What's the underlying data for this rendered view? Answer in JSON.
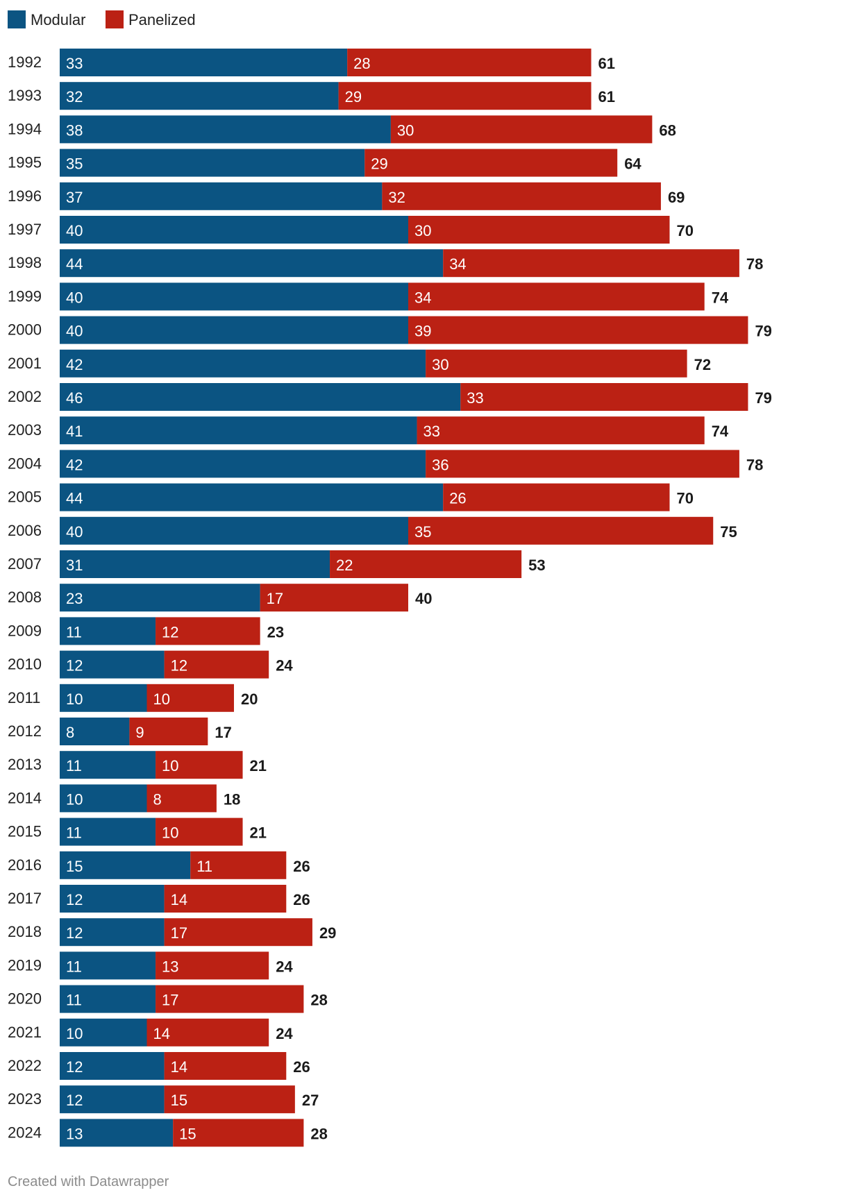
{
  "chart_data": {
    "type": "bar",
    "orientation": "horizontal",
    "stacked": true,
    "title": "",
    "xlabel": "",
    "ylabel": "",
    "xlim": [
      0,
      79
    ],
    "grid": false,
    "legend_position": "top-left",
    "categories": [
      "1992",
      "1993",
      "1994",
      "1995",
      "1996",
      "1997",
      "1998",
      "1999",
      "2000",
      "2001",
      "2002",
      "2003",
      "2004",
      "2005",
      "2006",
      "2007",
      "2008",
      "2009",
      "2010",
      "2011",
      "2012",
      "2013",
      "2014",
      "2015",
      "2016",
      "2017",
      "2018",
      "2019",
      "2020",
      "2021",
      "2022",
      "2023",
      "2024"
    ],
    "series": [
      {
        "name": "Modular",
        "color": "#0b5482",
        "values": [
          33,
          32,
          38,
          35,
          37,
          40,
          44,
          40,
          40,
          42,
          46,
          41,
          42,
          44,
          40,
          31,
          23,
          11,
          12,
          10,
          8,
          11,
          10,
          11,
          15,
          12,
          12,
          11,
          11,
          10,
          12,
          12,
          13
        ]
      },
      {
        "name": "Panelized",
        "color": "#bb2114",
        "values": [
          28,
          29,
          30,
          29,
          32,
          30,
          34,
          34,
          39,
          30,
          33,
          33,
          36,
          26,
          35,
          22,
          17,
          12,
          12,
          10,
          9,
          10,
          8,
          10,
          11,
          14,
          17,
          13,
          17,
          14,
          14,
          15,
          15
        ]
      }
    ],
    "totals": [
      61,
      61,
      68,
      64,
      69,
      70,
      78,
      74,
      79,
      72,
      79,
      74,
      78,
      70,
      75,
      53,
      40,
      23,
      24,
      20,
      17,
      21,
      18,
      21,
      26,
      26,
      29,
      24,
      28,
      24,
      26,
      27,
      28
    ]
  },
  "footer": {
    "text": "Created with Datawrapper"
  }
}
